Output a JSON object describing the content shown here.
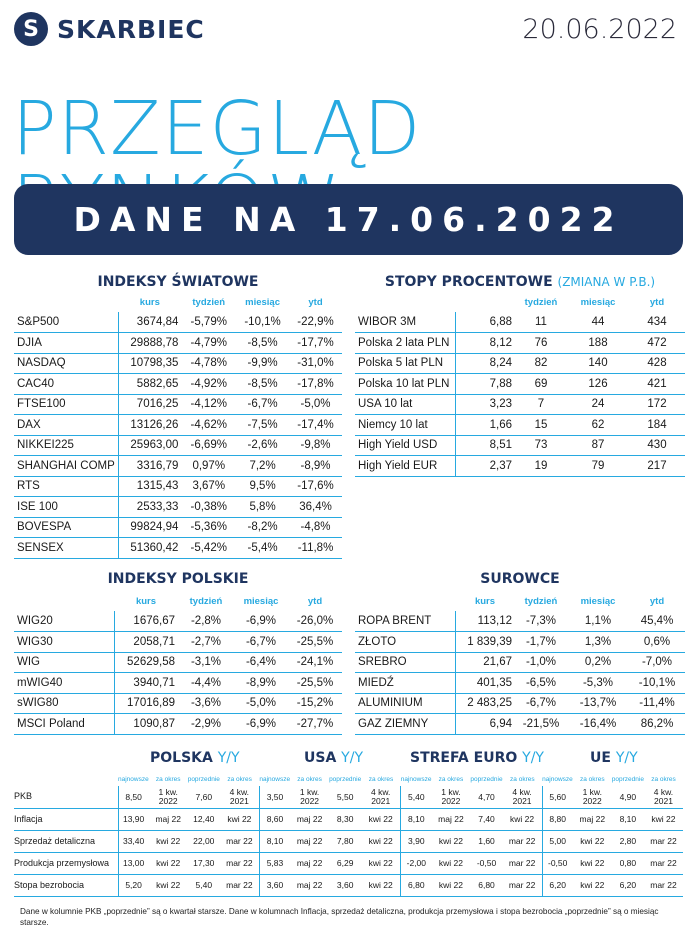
{
  "header": {
    "logo_letter": "S",
    "brand": "SKARBIEC",
    "date": "20.06.2022"
  },
  "title": "PRZEGLĄD RYNKÓW",
  "banner": "DANE NA 17.06.2022",
  "world": {
    "title": "INDEKSY ŚWIATOWE",
    "cols": [
      "kurs",
      "tydzień",
      "miesiąc",
      "ytd"
    ],
    "rows": [
      [
        "S&P500",
        "3674,84",
        "-5,79%",
        "-10,1%",
        "-22,9%"
      ],
      [
        "DJIA",
        "29888,78",
        "-4,79%",
        "-8,5%",
        "-17,7%"
      ],
      [
        "NASDAQ",
        "10798,35",
        "-4,78%",
        "-9,9%",
        "-31,0%"
      ],
      [
        "CAC40",
        "5882,65",
        "-4,92%",
        "-8,5%",
        "-17,8%"
      ],
      [
        "FTSE100",
        "7016,25",
        "-4,12%",
        "-6,7%",
        "-5,0%"
      ],
      [
        "DAX",
        "13126,26",
        "-4,62%",
        "-7,5%",
        "-17,4%"
      ],
      [
        "NIKKEI225",
        "25963,00",
        "-6,69%",
        "-2,6%",
        "-9,8%"
      ],
      [
        "SHANGHAI COMP",
        "3316,79",
        "0,97%",
        "7,2%",
        "-8,9%"
      ],
      [
        "RTS",
        "1315,43",
        "3,67%",
        "9,5%",
        "-17,6%"
      ],
      [
        "ISE 100",
        "2533,33",
        "-0,38%",
        "5,8%",
        "36,4%"
      ],
      [
        "BOVESPA",
        "99824,94",
        "-5,36%",
        "-8,2%",
        "-4,8%"
      ],
      [
        "SENSEX",
        "51360,42",
        "-5,42%",
        "-5,4%",
        "-11,8%"
      ]
    ]
  },
  "rates": {
    "title": "STOPY PROCENTOWE",
    "subtitle": "(ZMIANA W P.B.)",
    "cols": [
      "",
      "tydzień",
      "miesiąc",
      "ytd"
    ],
    "rows": [
      [
        "WIBOR 3M",
        "6,88",
        "11",
        "44",
        "434"
      ],
      [
        "Polska 2 lata PLN",
        "8,12",
        "76",
        "188",
        "472"
      ],
      [
        "Polska 5 lat PLN",
        "8,24",
        "82",
        "140",
        "428"
      ],
      [
        "Polska 10 lat PLN",
        "7,88",
        "69",
        "126",
        "421"
      ],
      [
        "USA 10 lat",
        "3,23",
        "7",
        "24",
        "172"
      ],
      [
        "Niemcy 10 lat",
        "1,66",
        "15",
        "62",
        "184"
      ],
      [
        "High Yield USD",
        "8,51",
        "73",
        "87",
        "430"
      ],
      [
        "High Yield EUR",
        "2,37",
        "19",
        "79",
        "217"
      ]
    ]
  },
  "polish": {
    "title": "INDEKSY POLSKIE",
    "cols": [
      "kurs",
      "tydzień",
      "miesiąc",
      "ytd"
    ],
    "rows": [
      [
        "WIG20",
        "1676,67",
        "-2,8%",
        "-6,9%",
        "-26,0%"
      ],
      [
        "WIG30",
        "2058,71",
        "-2,7%",
        "-6,7%",
        "-25,5%"
      ],
      [
        "WIG",
        "52629,58",
        "-3,1%",
        "-6,4%",
        "-24,1%"
      ],
      [
        "mWIG40",
        "3940,71",
        "-4,4%",
        "-8,9%",
        "-25,5%"
      ],
      [
        "sWIG80",
        "17016,89",
        "-3,6%",
        "-5,0%",
        "-15,2%"
      ],
      [
        "MSCI Poland",
        "1090,87",
        "-2,9%",
        "-6,9%",
        "-27,7%"
      ]
    ]
  },
  "commod": {
    "title": "SUROWCE",
    "cols": [
      "kurs",
      "tydzień",
      "miesiąc",
      "ytd"
    ],
    "rows": [
      [
        "ROPA BRENT",
        "113,12",
        "-7,3%",
        "1,1%",
        "45,4%"
      ],
      [
        "ZŁOTO",
        "1 839,39",
        "-1,7%",
        "1,3%",
        "0,6%"
      ],
      [
        "SREBRO",
        "21,67",
        "-1,0%",
        "0,2%",
        "-7,0%"
      ],
      [
        "MIEDŹ",
        "401,35",
        "-6,5%",
        "-5,3%",
        "-10,1%"
      ],
      [
        "ALUMINIUM",
        "2 483,25",
        "-6,7%",
        "-13,7%",
        "-11,4%"
      ],
      [
        "GAZ ZIEMNY",
        "6,94",
        "-21,5%",
        "-16,4%",
        "86,2%"
      ]
    ]
  },
  "macro": {
    "regions": [
      {
        "name": "POLSKA",
        "yy": "Y/Y"
      },
      {
        "name": "USA",
        "yy": "Y/Y"
      },
      {
        "name": "STREFA EURO",
        "yy": "Y/Y"
      },
      {
        "name": "UE",
        "yy": "Y/Y"
      }
    ],
    "subcols": [
      "najnowsze",
      "za okres",
      "poprzednie",
      "za okres"
    ],
    "rows": [
      {
        "label": "PKB",
        "vals": [
          "8,50",
          "1 kw. 2022",
          "7,60",
          "4 kw. 2021",
          "3,50",
          "1 kw. 2022",
          "5,50",
          "4 kw. 2021",
          "5,40",
          "1 kw. 2022",
          "4,70",
          "4 kw. 2021",
          "5,60",
          "1 kw. 2022",
          "4,90",
          "4 kw. 2021"
        ]
      },
      {
        "label": "Inflacja",
        "vals": [
          "13,90",
          "maj 22",
          "12,40",
          "kwi 22",
          "8,60",
          "maj 22",
          "8,30",
          "kwi 22",
          "8,10",
          "maj 22",
          "7,40",
          "kwi 22",
          "8,80",
          "maj 22",
          "8,10",
          "kwi 22"
        ]
      },
      {
        "label": "Sprzedaż detaliczna",
        "vals": [
          "33,40",
          "kwi 22",
          "22,00",
          "mar 22",
          "8,10",
          "maj 22",
          "7,80",
          "kwi 22",
          "3,90",
          "kwi 22",
          "1,60",
          "mar 22",
          "5,00",
          "kwi 22",
          "2,80",
          "mar 22"
        ]
      },
      {
        "label": "Produkcja przemysłowa",
        "vals": [
          "13,00",
          "kwi 22",
          "17,30",
          "mar 22",
          "5,83",
          "maj 22",
          "6,29",
          "kwi 22",
          "-2,00",
          "kwi 22",
          "-0,50",
          "mar 22",
          "-0,50",
          "kwi 22",
          "0,80",
          "mar 22"
        ]
      },
      {
        "label": "Stopa bezrobocia",
        "vals": [
          "5,20",
          "kwi 22",
          "5,40",
          "mar 22",
          "3,60",
          "maj 22",
          "3,60",
          "kwi 22",
          "6,80",
          "kwi 22",
          "6,80",
          "mar 22",
          "6,20",
          "kwi 22",
          "6,20",
          "mar 22"
        ]
      }
    ]
  },
  "footnote": "Dane w kolumnie PKB „poprzednie” są o kwartał starsze.  Dane w kolumnach Inflacja, sprzedaż detaliczna, produkcja przemysłowa i stopa bezrobocia „poprzednie” są o miesiąc starsze.",
  "colors": {
    "navy": "#1f3560",
    "accent": "#27a9e0"
  }
}
